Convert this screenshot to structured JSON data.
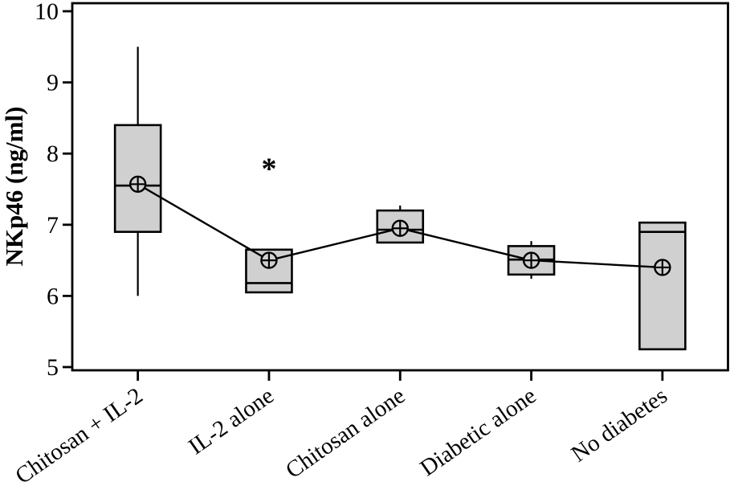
{
  "chart_data": {
    "type": "box",
    "title": "",
    "xlabel": "",
    "ylabel": "NKp46 (ng/ml)",
    "ylim": [
      5,
      10
    ],
    "yticks": [
      10,
      9,
      8,
      7,
      6,
      5
    ],
    "grid": false,
    "legend": false,
    "categories": [
      "Chitosan + IL-2",
      "IL-2 alone",
      "Chitosan alone",
      "Diabetic alone",
      "No diabetes"
    ],
    "boxes": [
      {
        "label": "Chitosan + IL-2",
        "whisker_low": 6.0,
        "q1": 6.9,
        "median": 7.55,
        "q3": 8.4,
        "whisker_high": 9.5,
        "mean": 7.57
      },
      {
        "label": "IL-2 alone",
        "whisker_low": null,
        "q1": 6.05,
        "median": 6.18,
        "q3": 6.65,
        "whisker_high": null,
        "mean": 6.5
      },
      {
        "label": "Chitosan alone",
        "whisker_low": null,
        "q1": 6.75,
        "median": 6.93,
        "q3": 7.2,
        "whisker_high": 7.27,
        "mean": 6.95
      },
      {
        "label": "Diabetic alone",
        "whisker_low": 6.24,
        "q1": 6.3,
        "median": 6.51,
        "q3": 6.7,
        "whisker_high": 6.77,
        "mean": 6.5
      },
      {
        "label": "No diabetes",
        "whisker_low": null,
        "q1": 5.25,
        "median": 6.9,
        "q3": 7.03,
        "whisker_high": null,
        "mean": 6.4
      }
    ],
    "mean_series": {
      "name": "mean",
      "marker": "circle-plus",
      "values": [
        7.57,
        6.5,
        6.95,
        6.5,
        6.4
      ]
    },
    "annotations": [
      {
        "text": "*",
        "category_index": 1,
        "value": 7.85
      }
    ],
    "colors": {
      "box_fill": "#d0d0d0",
      "stroke": "#000000",
      "background": "#ffffff"
    }
  }
}
